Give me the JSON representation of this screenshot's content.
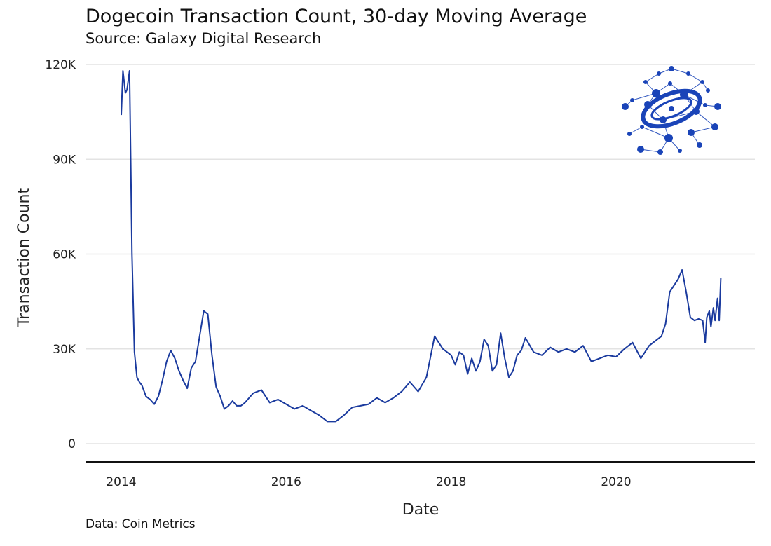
{
  "title": "Dogecoin Transaction Count, 30-day Moving Average",
  "subtitle": "Source: Galaxy Digital Research",
  "caption": "Data: Coin Metrics",
  "logo": {
    "name": "galaxy-digital-logo",
    "color": "#1a44b8"
  },
  "chart_data": {
    "type": "line",
    "xlabel": "Date",
    "ylabel": "Transaction Count",
    "xlim": [
      2013.8,
      2021.8
    ],
    "ylim": [
      -5000,
      120000
    ],
    "x_ticks": [
      2014,
      2016,
      2018,
      2020
    ],
    "x_tick_labels": [
      "2014",
      "2016",
      "2018",
      "2020"
    ],
    "y_ticks": [
      0,
      30000,
      60000,
      90000,
      120000
    ],
    "y_tick_labels": [
      "0",
      "30K",
      "60K",
      "90K",
      "120K"
    ],
    "grid": true,
    "series": [
      {
        "name": "Transaction Count (30-day MA)",
        "color": "#1a3a9e",
        "x": [
          2014.0,
          2014.02,
          2014.05,
          2014.07,
          2014.1,
          2014.13,
          2014.16,
          2014.19,
          2014.22,
          2014.25,
          2014.3,
          2014.35,
          2014.4,
          2014.45,
          2014.5,
          2014.55,
          2014.6,
          2014.65,
          2014.7,
          2014.75,
          2014.8,
          2014.85,
          2014.9,
          2014.95,
          2015.0,
          2015.05,
          2015.1,
          2015.15,
          2015.2,
          2015.25,
          2015.3,
          2015.35,
          2015.4,
          2015.45,
          2015.5,
          2015.55,
          2015.6,
          2015.7,
          2015.8,
          2015.9,
          2016.0,
          2016.1,
          2016.2,
          2016.3,
          2016.4,
          2016.5,
          2016.6,
          2016.7,
          2016.8,
          2016.9,
          2017.0,
          2017.1,
          2017.2,
          2017.3,
          2017.4,
          2017.5,
          2017.6,
          2017.7,
          2017.8,
          2017.9,
          2018.0,
          2018.05,
          2018.1,
          2018.15,
          2018.2,
          2018.25,
          2018.3,
          2018.35,
          2018.4,
          2018.45,
          2018.5,
          2018.55,
          2018.6,
          2018.65,
          2018.7,
          2018.75,
          2018.8,
          2018.85,
          2018.9,
          2019.0,
          2019.1,
          2019.2,
          2019.3,
          2019.4,
          2019.5,
          2019.6,
          2019.7,
          2019.8,
          2019.9,
          2020.0,
          2020.1,
          2020.2,
          2020.3,
          2020.4,
          2020.5,
          2020.55,
          2020.6,
          2020.65,
          2020.7,
          2020.75,
          2020.8,
          2020.85,
          2020.9,
          2020.95,
          2021.0,
          2021.05,
          2021.08,
          2021.1,
          2021.13,
          2021.15,
          2021.18,
          2021.2,
          2021.23,
          2021.25,
          2021.27
        ],
        "y": [
          104000,
          118000,
          111000,
          112000,
          118000,
          60000,
          29000,
          21000,
          19500,
          18500,
          15000,
          14000,
          12500,
          15000,
          20000,
          26000,
          29500,
          27000,
          23000,
          20000,
          17500,
          24000,
          26000,
          34000,
          42000,
          41000,
          28000,
          18000,
          15000,
          11000,
          12000,
          13500,
          12000,
          12000,
          13000,
          14500,
          16000,
          17000,
          13000,
          14000,
          12500,
          11000,
          12000,
          10500,
          9000,
          7000,
          7000,
          9000,
          11500,
          12000,
          12500,
          14500,
          13000,
          14500,
          16500,
          19500,
          16500,
          21000,
          34000,
          30000,
          28000,
          25000,
          29000,
          28000,
          22000,
          27000,
          23000,
          26000,
          33000,
          31000,
          23000,
          25000,
          35000,
          27000,
          21000,
          23000,
          28000,
          29500,
          33500,
          29000,
          28000,
          30500,
          29000,
          30000,
          29000,
          31000,
          26000,
          27000,
          28000,
          27500,
          30000,
          32000,
          27000,
          31000,
          33000,
          34000,
          38000,
          48000,
          50000,
          52000,
          55000,
          48000,
          40000,
          39000,
          39500,
          39000,
          32000,
          40000,
          42000,
          37000,
          43000,
          39000,
          46000,
          39000,
          52500
        ]
      }
    ]
  }
}
